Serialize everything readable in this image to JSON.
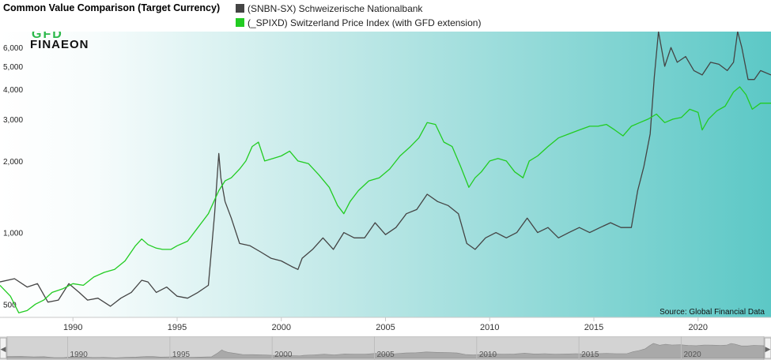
{
  "header": {
    "title": "Common Value Comparison (Target Currency)"
  },
  "logo": {
    "line1": "GFD",
    "line2": "FINAEON"
  },
  "source_text": "Source: Global Financial Data",
  "colors": {
    "series_snb": "#444444",
    "series_spix": "#22cc22",
    "bg_left": "#ffffff",
    "bg_right": "#5cc8c6"
  },
  "chart_data": {
    "type": "line",
    "title": "Common Value Comparison (Target Currency)",
    "xlabel": "",
    "ylabel": "",
    "y_scale": "log",
    "ylim": [
      440,
      7000
    ],
    "xlim": [
      1986.5,
      2023.5
    ],
    "x_ticks": [
      1990,
      1995,
      2000,
      2005,
      2010,
      2015,
      2020
    ],
    "y_ticks": [
      500,
      1000,
      2000,
      3000,
      4000,
      5000,
      6000
    ],
    "y_tick_labels": [
      "500",
      "1,000",
      "2,000",
      "3,000",
      "4,000",
      "5,000",
      "6,000"
    ],
    "grid": false,
    "legend_position": "top",
    "series": [
      {
        "name": "(SNBN-SX) Schweizerische Nationalbank",
        "color": "#444444",
        "x": [
          1986.5,
          1987.2,
          1987.8,
          1988.3,
          1988.8,
          1989.3,
          1989.8,
          1990.3,
          1990.7,
          1991.2,
          1991.8,
          1992.3,
          1992.8,
          1993.3,
          1993.6,
          1994.0,
          1994.5,
          1995.0,
          1995.5,
          1996.0,
          1996.5,
          1996.8,
          1997.0,
          1997.1,
          1997.3,
          1997.6,
          1998.0,
          1998.5,
          1999.0,
          1999.5,
          2000.0,
          2000.5,
          2000.8,
          2001.0,
          2001.5,
          2002.0,
          2002.5,
          2003.0,
          2003.5,
          2004.0,
          2004.5,
          2005.0,
          2005.5,
          2006.0,
          2006.5,
          2007.0,
          2007.5,
          2008.0,
          2008.5,
          2008.9,
          2009.3,
          2009.8,
          2010.3,
          2010.8,
          2011.3,
          2011.8,
          2012.3,
          2012.8,
          2013.3,
          2013.8,
          2014.3,
          2014.8,
          2015.3,
          2015.8,
          2016.3,
          2016.8,
          2017.1,
          2017.4,
          2017.7,
          2017.9,
          2018.1,
          2018.4,
          2018.7,
          2019.0,
          2019.4,
          2019.8,
          2020.2,
          2020.6,
          2021.0,
          2021.4,
          2021.7,
          2021.9,
          2022.1,
          2022.4,
          2022.7,
          2023.0,
          2023.5
        ],
        "values": [
          620,
          640,
          590,
          610,
          510,
          520,
          610,
          560,
          520,
          530,
          490,
          530,
          560,
          630,
          620,
          560,
          590,
          540,
          530,
          560,
          600,
          1200,
          2150,
          1700,
          1350,
          1150,
          900,
          880,
          830,
          780,
          760,
          720,
          700,
          780,
          850,
          950,
          850,
          1000,
          950,
          950,
          1100,
          980,
          1050,
          1200,
          1250,
          1450,
          1350,
          1300,
          1200,
          900,
          850,
          950,
          1000,
          950,
          1000,
          1150,
          1000,
          1050,
          950,
          1000,
          1050,
          1000,
          1050,
          1100,
          1050,
          1050,
          1500,
          1900,
          2600,
          4500,
          7000,
          5000,
          6000,
          5200,
          5500,
          4800,
          4600,
          5200,
          5100,
          4800,
          5200,
          7000,
          6000,
          4400,
          4400,
          4800,
          4600
        ]
      },
      {
        "name": "(_SPIXD) Switzerland Price Index (with GFD extension)",
        "color": "#22cc22",
        "x": [
          1986.5,
          1987.0,
          1987.4,
          1987.8,
          1988.2,
          1988.6,
          1989.0,
          1989.5,
          1990.0,
          1990.5,
          1991.0,
          1991.5,
          1992.0,
          1992.5,
          1993.0,
          1993.3,
          1993.6,
          1994.0,
          1994.3,
          1994.7,
          1995.0,
          1995.5,
          1996.0,
          1996.5,
          1997.0,
          1997.3,
          1997.6,
          1998.0,
          1998.3,
          1998.6,
          1998.9,
          1999.2,
          1999.6,
          2000.0,
          2000.4,
          2000.8,
          2001.3,
          2001.8,
          2002.3,
          2002.7,
          2003.0,
          2003.3,
          2003.7,
          2004.2,
          2004.7,
          2005.2,
          2005.7,
          2006.2,
          2006.6,
          2007.0,
          2007.4,
          2007.8,
          2008.2,
          2008.6,
          2009.0,
          2009.3,
          2009.6,
          2010.0,
          2010.4,
          2010.8,
          2011.2,
          2011.6,
          2011.9,
          2012.3,
          2012.8,
          2013.3,
          2013.8,
          2014.3,
          2014.8,
          2015.2,
          2015.6,
          2016.0,
          2016.4,
          2016.8,
          2017.2,
          2017.6,
          2018.0,
          2018.4,
          2018.8,
          2019.2,
          2019.6,
          2020.0,
          2020.2,
          2020.5,
          2020.9,
          2021.3,
          2021.7,
          2022.0,
          2022.3,
          2022.6,
          2023.0,
          2023.5
        ],
        "values": [
          600,
          540,
          460,
          470,
          500,
          520,
          560,
          580,
          610,
          600,
          650,
          680,
          700,
          760,
          880,
          940,
          890,
          860,
          850,
          850,
          880,
          920,
          1050,
          1200,
          1500,
          1650,
          1700,
          1850,
          2000,
          2300,
          2400,
          2000,
          2050,
          2100,
          2200,
          2000,
          1950,
          1750,
          1550,
          1300,
          1200,
          1350,
          1500,
          1650,
          1700,
          1850,
          2100,
          2300,
          2500,
          2900,
          2850,
          2400,
          2300,
          1900,
          1550,
          1700,
          1800,
          2000,
          2050,
          2000,
          1800,
          1700,
          2000,
          2100,
          2300,
          2500,
          2600,
          2700,
          2800,
          2800,
          2850,
          2700,
          2550,
          2800,
          2900,
          3000,
          3150,
          2900,
          3000,
          3050,
          3300,
          3200,
          2700,
          3000,
          3250,
          3400,
          3900,
          4100,
          3800,
          3300,
          3500,
          3500
        ]
      }
    ]
  }
}
